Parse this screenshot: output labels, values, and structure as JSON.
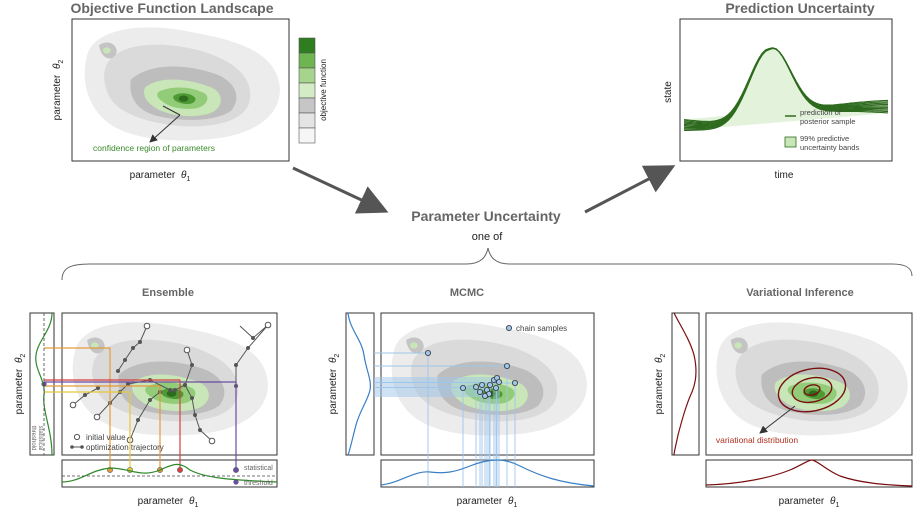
{
  "objective": {
    "title": "Objective Function Landscape",
    "xlabel": "parameter",
    "xsym": "θ",
    "xsub": "1",
    "ylabel": "parameter",
    "ysym": "θ",
    "ysub": "2",
    "colorbar_label": "objective function",
    "annotation": "confidence region of parameters"
  },
  "prediction": {
    "title": "Prediction Uncertainty",
    "xlabel": "time",
    "ylabel": "state",
    "legend_line": [
      "prediction of",
      "posterior sample"
    ],
    "legend_band": [
      "99% predictive",
      "uncertainty bands"
    ]
  },
  "center": {
    "title": "Parameter Uncertainty",
    "subtitle": "one of"
  },
  "ensemble": {
    "title": "Ensemble",
    "xlabel": "parameter",
    "xsym": "θ",
    "xsub": "1",
    "ylabel": "parameter",
    "ysym": "θ",
    "ysub": "2",
    "legend_initial": "initial value",
    "legend_traj": "optimization trajectory",
    "stat_threshold_x": [
      "statistical",
      "threshold"
    ],
    "stat_threshold_y": [
      "statistical",
      "threshold"
    ]
  },
  "mcmc": {
    "title": "MCMC",
    "xlabel": "parameter",
    "xsym": "θ",
    "xsub": "1",
    "ylabel": "parameter",
    "ysym": "θ",
    "ysub": "2",
    "legend": "chain samples"
  },
  "vi": {
    "title": "Variational Inference",
    "xlabel": "parameter",
    "xsym": "θ",
    "xsub": "1",
    "ylabel": "parameter",
    "ysym": "θ",
    "ysub": "2",
    "annotation": "variational distribution"
  },
  "colors": {
    "dark_green": "#2e7d1f",
    "mid_green": "#7fbf5f",
    "light_green": "#c8e6b8",
    "grey_dark": "#b4b4b4",
    "grey_mid": "#d0d0d0",
    "grey_light": "#e9e9e9",
    "blue": "#3a7fc4",
    "light_blue": "#9ec6ea",
    "dark_red": "#7a0f0f",
    "red_label": "#b03020",
    "orange": "#e49a3a",
    "yellow": "#e8c83a",
    "red": "#d64040",
    "purple": "#6a4ca0",
    "text": "#444444"
  }
}
